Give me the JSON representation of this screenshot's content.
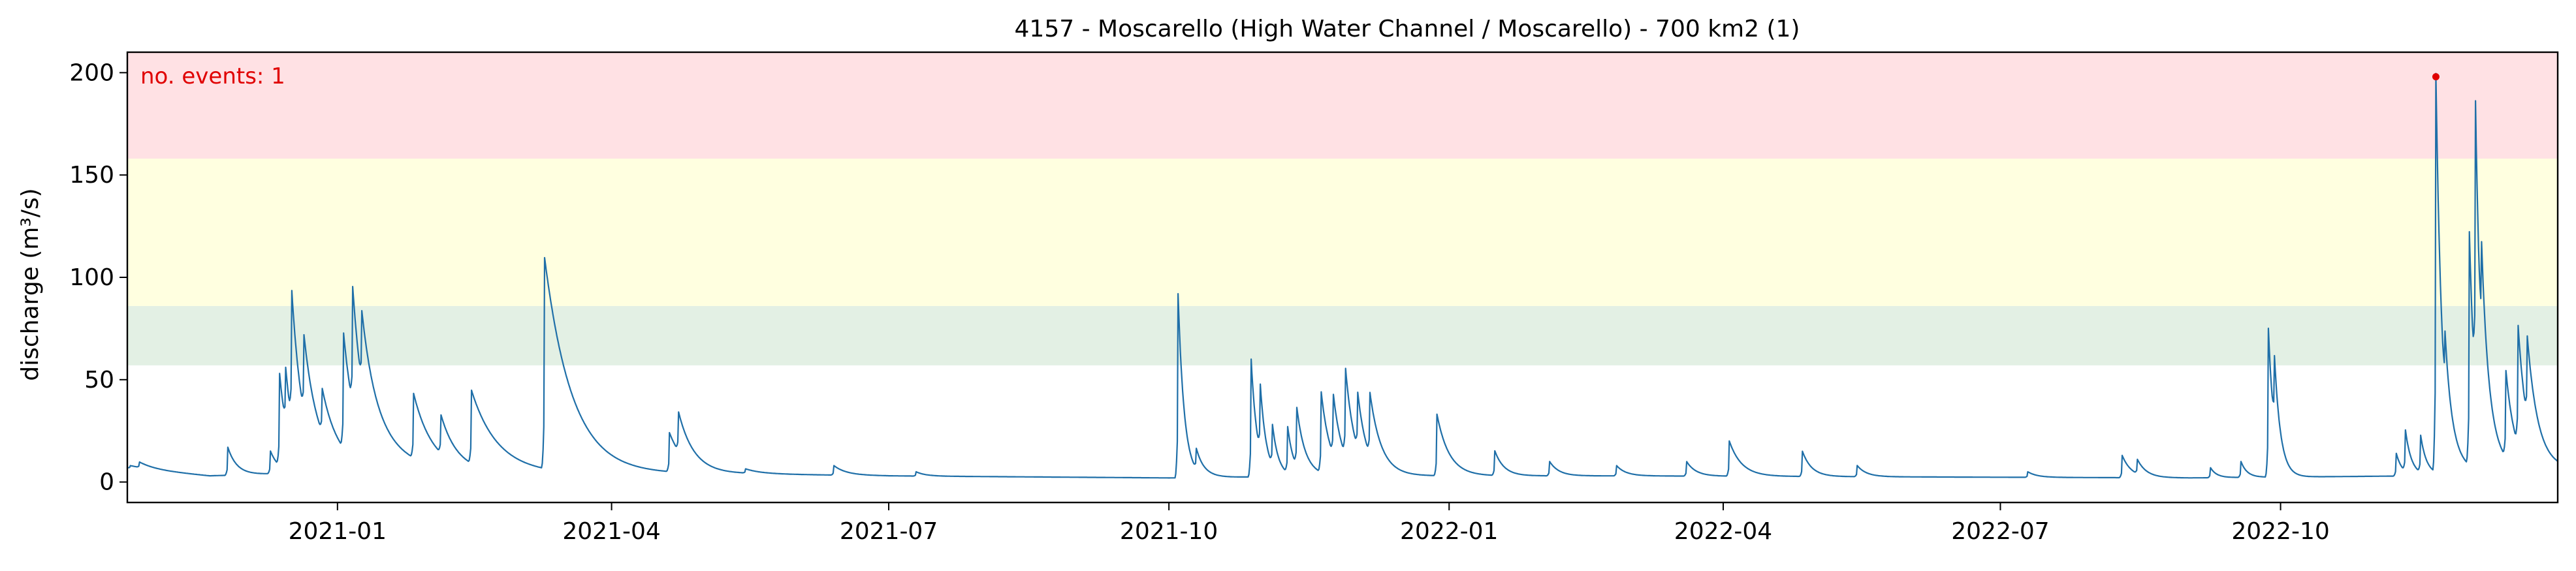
{
  "chart_data": {
    "type": "line",
    "title": "4157 - Moscarello (High Water Channel / Moscarello) - 700 km2 (1)",
    "xlabel": "",
    "ylabel": "discharge (m³/s)",
    "x_range": [
      "2020-10-24",
      "2022-12-31"
    ],
    "ylim": [
      -10,
      210
    ],
    "yticks": [
      0,
      50,
      100,
      150,
      200
    ],
    "xticks": [
      {
        "date": "2021-01-01",
        "label": "2021-01"
      },
      {
        "date": "2021-04-01",
        "label": "2021-04"
      },
      {
        "date": "2021-07-01",
        "label": "2021-07"
      },
      {
        "date": "2021-10-01",
        "label": "2021-10"
      },
      {
        "date": "2022-01-01",
        "label": "2022-01"
      },
      {
        "date": "2022-04-01",
        "label": "2022-04"
      },
      {
        "date": "2022-07-01",
        "label": "2022-07"
      },
      {
        "date": "2022-10-01",
        "label": "2022-10"
      }
    ],
    "grid": false,
    "threshold_bands": [
      {
        "name": "band-1",
        "from": 57,
        "to": 86,
        "color": "#e3f0e4"
      },
      {
        "name": "band-2",
        "from": 86,
        "to": 158,
        "color": "#ffffe0"
      },
      {
        "name": "band-3",
        "from": 158,
        "to": 210,
        "color": "#ffe1e4"
      }
    ],
    "annotation": {
      "text": "no. events: 1",
      "color": "#e00000"
    },
    "events": [
      {
        "date": "2022-11-21",
        "value": 198
      }
    ],
    "series": [
      {
        "name": "discharge",
        "color": "#1f6fa8",
        "base": 2,
        "baseflow": [
          [
            "2020-10-24",
            7
          ],
          [
            "2020-11-20",
            3
          ],
          [
            "2021-01-01",
            5
          ],
          [
            "2021-03-10",
            4
          ],
          [
            "2021-05-15",
            4
          ],
          [
            "2021-07-01",
            3
          ],
          [
            "2021-10-01",
            2
          ],
          [
            "2021-12-01",
            3
          ],
          [
            "2022-03-01",
            3
          ],
          [
            "2022-06-01",
            2.5
          ],
          [
            "2022-09-01",
            2
          ],
          [
            "2022-11-15",
            3
          ],
          [
            "2022-12-31",
            6
          ]
        ],
        "peaks": [
          [
            "2020-10-25",
            8,
            4
          ],
          [
            "2020-10-28",
            9,
            4
          ],
          [
            "2020-11-26",
            17,
            3
          ],
          [
            "2020-12-10",
            15,
            3
          ],
          [
            "2020-12-13",
            49,
            3
          ],
          [
            "2020-12-15",
            31,
            3
          ],
          [
            "2020-12-17",
            67,
            4
          ],
          [
            "2020-12-21",
            42,
            6
          ],
          [
            "2020-12-27",
            26,
            6
          ],
          [
            "2021-01-03",
            61,
            4
          ],
          [
            "2021-01-06",
            62,
            4
          ],
          [
            "2021-01-09",
            40,
            10
          ],
          [
            "2021-01-26",
            36,
            6
          ],
          [
            "2021-02-04",
            23,
            5
          ],
          [
            "2021-02-14",
            40,
            9
          ],
          [
            "2021-03-10",
            107,
            9
          ],
          [
            "2021-04-20",
            23,
            5
          ],
          [
            "2021-04-23",
            23,
            5
          ],
          [
            "2021-05-15",
            6,
            5
          ],
          [
            "2021-06-13",
            8,
            4
          ],
          [
            "2021-07-10",
            5,
            3
          ],
          [
            "2021-10-04",
            92,
            2
          ],
          [
            "2021-10-10",
            12,
            3
          ],
          [
            "2021-10-28",
            60,
            2
          ],
          [
            "2021-10-31",
            35,
            2
          ],
          [
            "2021-11-04",
            22,
            2
          ],
          [
            "2021-11-09",
            25,
            2
          ],
          [
            "2021-11-12",
            31,
            3
          ],
          [
            "2021-11-20",
            42,
            3
          ],
          [
            "2021-11-24",
            32,
            3
          ],
          [
            "2021-11-28",
            45,
            3
          ],
          [
            "2021-12-02",
            30,
            3
          ],
          [
            "2021-12-06",
            33,
            4
          ],
          [
            "2021-12-28",
            33,
            4
          ],
          [
            "2022-01-16",
            15,
            3
          ],
          [
            "2022-02-03",
            10,
            3
          ],
          [
            "2022-02-25",
            8,
            3
          ],
          [
            "2022-03-20",
            10,
            3
          ],
          [
            "2022-04-03",
            20,
            4
          ],
          [
            "2022-04-27",
            15,
            3
          ],
          [
            "2022-05-15",
            8,
            3
          ],
          [
            "2022-07-10",
            5,
            3
          ],
          [
            "2022-08-10",
            13,
            3
          ],
          [
            "2022-08-15",
            9,
            3
          ],
          [
            "2022-09-08",
            7,
            2
          ],
          [
            "2022-09-18",
            10,
            2
          ],
          [
            "2022-09-27",
            75,
            2
          ],
          [
            "2022-09-29",
            35,
            2
          ],
          [
            "2022-11-08",
            14,
            2
          ],
          [
            "2022-11-11",
            23,
            2
          ],
          [
            "2022-11-16",
            21,
            2
          ],
          [
            "2022-11-21",
            198,
            2
          ],
          [
            "2022-11-24",
            30,
            4
          ],
          [
            "2022-12-02",
            118,
            2
          ],
          [
            "2022-12-04",
            142,
            2
          ],
          [
            "2022-12-06",
            50,
            4
          ],
          [
            "2022-12-14",
            47,
            3
          ],
          [
            "2022-12-18",
            63,
            3
          ],
          [
            "2022-12-21",
            45,
            4
          ]
        ]
      }
    ]
  }
}
